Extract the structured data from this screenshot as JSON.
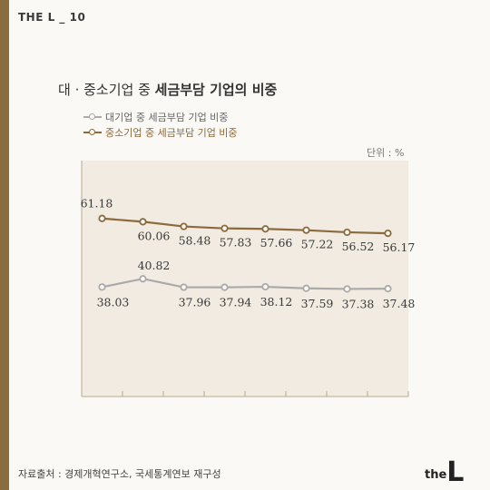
{
  "brand": {
    "text": "THE L _ 10"
  },
  "title": {
    "prefix": "대 · 중소기업 중 ",
    "bold": "세금부담 기업의 비중"
  },
  "chart_data": {
    "type": "line",
    "x": [
      1,
      2,
      3,
      4,
      5,
      6,
      7,
      8
    ],
    "series": [
      {
        "name": "대기업 중 세금부담 기업 비중",
        "color": "#aaaaaa",
        "values": [
          38.03,
          40.82,
          37.96,
          37.94,
          38.12,
          37.59,
          37.38,
          37.48
        ]
      },
      {
        "name": "중소기업 중 세금부담 기업 비중",
        "color": "#8b6a3d",
        "values": [
          61.18,
          60.06,
          58.48,
          57.83,
          57.66,
          57.22,
          56.52,
          56.17
        ]
      }
    ],
    "unit_label": "단위 : %",
    "grid": false,
    "legend_position": "top-left"
  },
  "source": {
    "text": "자료출처 : 경제개혁연구소, 국세통계연보 재구성"
  },
  "logo": {
    "prefix": "the",
    "mark": "L"
  }
}
